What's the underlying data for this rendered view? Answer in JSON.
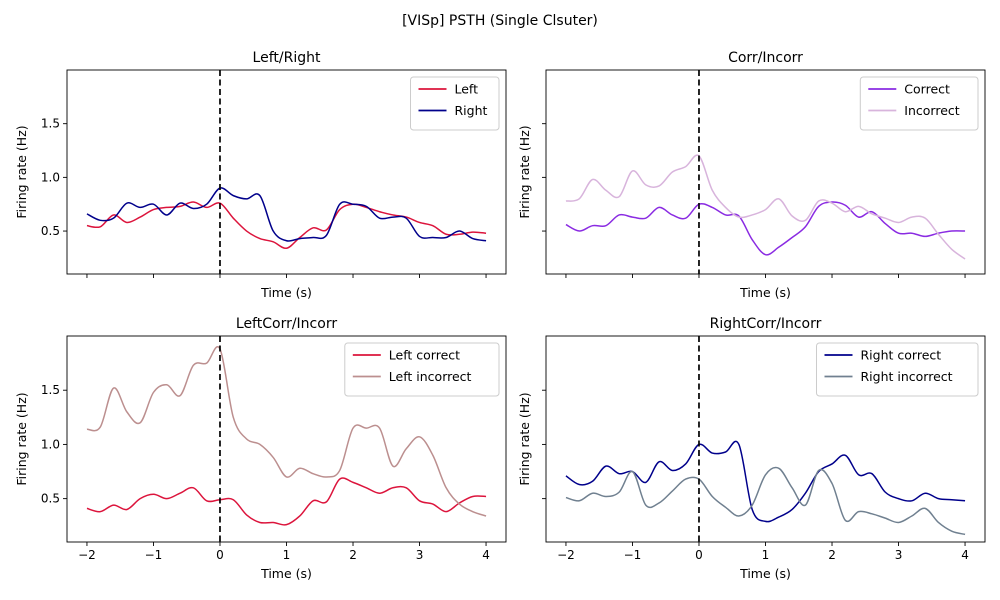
{
  "suptitle": "[VISp] PSTH (Single Clsuter)",
  "chart_data": [
    {
      "type": "line",
      "title": "Left/Right",
      "xlabel": "Time (s)",
      "ylabel": "Firing rate (Hz)",
      "xlim": [
        -2.3,
        4.3
      ],
      "ylim": [
        0.1,
        2.0
      ],
      "xticks": [
        -2,
        -1,
        0,
        1,
        2,
        3,
        4
      ],
      "yticks": [
        0.5,
        1.0,
        1.5
      ],
      "show_xticklabels": false,
      "show_yticklabels": true,
      "legend": "upper right",
      "vline": 0,
      "series": [
        {
          "name": "Left",
          "color": "#dc143c",
          "x": [
            -2.0,
            -1.8,
            -1.6,
            -1.4,
            -1.2,
            -1.0,
            -0.8,
            -0.6,
            -0.4,
            -0.2,
            0.0,
            0.2,
            0.4,
            0.6,
            0.8,
            1.0,
            1.2,
            1.4,
            1.6,
            1.8,
            2.0,
            2.2,
            2.4,
            2.6,
            2.8,
            3.0,
            3.2,
            3.4,
            3.6,
            3.8,
            4.0
          ],
          "y": [
            0.55,
            0.54,
            0.65,
            0.58,
            0.63,
            0.7,
            0.72,
            0.73,
            0.77,
            0.72,
            0.76,
            0.62,
            0.5,
            0.43,
            0.4,
            0.34,
            0.44,
            0.53,
            0.51,
            0.7,
            0.75,
            0.72,
            0.68,
            0.65,
            0.63,
            0.58,
            0.55,
            0.47,
            0.47,
            0.49,
            0.48
          ]
        },
        {
          "name": "Right",
          "color": "#00008b",
          "x": [
            -2.0,
            -1.8,
            -1.6,
            -1.4,
            -1.2,
            -1.0,
            -0.8,
            -0.6,
            -0.4,
            -0.2,
            0.0,
            0.2,
            0.4,
            0.6,
            0.8,
            1.0,
            1.2,
            1.4,
            1.6,
            1.8,
            2.0,
            2.2,
            2.4,
            2.6,
            2.8,
            3.0,
            3.2,
            3.4,
            3.6,
            3.8,
            4.0
          ],
          "y": [
            0.66,
            0.6,
            0.62,
            0.76,
            0.72,
            0.75,
            0.65,
            0.76,
            0.71,
            0.75,
            0.9,
            0.83,
            0.8,
            0.83,
            0.5,
            0.41,
            0.43,
            0.44,
            0.46,
            0.75,
            0.75,
            0.73,
            0.62,
            0.63,
            0.62,
            0.45,
            0.44,
            0.44,
            0.5,
            0.43,
            0.41
          ]
        }
      ]
    },
    {
      "type": "line",
      "title": "Corr/Incorr",
      "xlabel": "Time (s)",
      "ylabel": "Firing rate (Hz)",
      "xlim": [
        -2.3,
        4.3
      ],
      "ylim": [
        0.1,
        2.0
      ],
      "xticks": [
        -2,
        -1,
        0,
        1,
        2,
        3,
        4
      ],
      "yticks": [
        0.5,
        1.0,
        1.5
      ],
      "show_xticklabels": false,
      "show_yticklabels": false,
      "legend": "upper right",
      "vline": 0,
      "series": [
        {
          "name": "Correct",
          "color": "#8a2be2",
          "x": [
            -2.0,
            -1.8,
            -1.6,
            -1.4,
            -1.2,
            -1.0,
            -0.8,
            -0.6,
            -0.4,
            -0.2,
            0.0,
            0.2,
            0.4,
            0.6,
            0.8,
            1.0,
            1.2,
            1.4,
            1.6,
            1.8,
            2.0,
            2.2,
            2.4,
            2.6,
            2.8,
            3.0,
            3.2,
            3.4,
            3.6,
            3.8,
            4.0
          ],
          "y": [
            0.56,
            0.5,
            0.55,
            0.55,
            0.65,
            0.63,
            0.62,
            0.72,
            0.65,
            0.62,
            0.75,
            0.72,
            0.65,
            0.64,
            0.42,
            0.28,
            0.35,
            0.44,
            0.54,
            0.73,
            0.77,
            0.74,
            0.63,
            0.68,
            0.57,
            0.48,
            0.48,
            0.45,
            0.48,
            0.5,
            0.5
          ]
        },
        {
          "name": "Incorrect",
          "color": "#d8b4dc",
          "x": [
            -2.0,
            -1.8,
            -1.6,
            -1.4,
            -1.2,
            -1.0,
            -0.8,
            -0.6,
            -0.4,
            -0.2,
            0.0,
            0.2,
            0.4,
            0.6,
            0.8,
            1.0,
            1.2,
            1.4,
            1.6,
            1.8,
            2.0,
            2.2,
            2.4,
            2.6,
            2.8,
            3.0,
            3.2,
            3.4,
            3.6,
            3.8,
            4.0
          ],
          "y": [
            0.78,
            0.8,
            0.98,
            0.88,
            0.82,
            1.06,
            0.93,
            0.92,
            1.05,
            1.1,
            1.2,
            0.88,
            0.72,
            0.63,
            0.65,
            0.7,
            0.8,
            0.64,
            0.6,
            0.78,
            0.76,
            0.68,
            0.73,
            0.66,
            0.62,
            0.58,
            0.63,
            0.62,
            0.47,
            0.33,
            0.24
          ]
        }
      ]
    },
    {
      "type": "line",
      "title": "LeftCorr/Incorr",
      "xlabel": "Time (s)",
      "ylabel": "Firing rate (Hz)",
      "xlim": [
        -2.3,
        4.3
      ],
      "ylim": [
        0.1,
        2.0
      ],
      "xticks": [
        -2,
        -1,
        0,
        1,
        2,
        3,
        4
      ],
      "yticks": [
        0.5,
        1.0,
        1.5
      ],
      "show_xticklabels": true,
      "show_yticklabels": true,
      "legend": "upper right",
      "vline": 0,
      "series": [
        {
          "name": "Left correct",
          "color": "#dc143c",
          "x": [
            -2.0,
            -1.8,
            -1.6,
            -1.4,
            -1.2,
            -1.0,
            -0.8,
            -0.6,
            -0.4,
            -0.2,
            0.0,
            0.2,
            0.4,
            0.6,
            0.8,
            1.0,
            1.2,
            1.4,
            1.6,
            1.8,
            2.0,
            2.2,
            2.4,
            2.6,
            2.8,
            3.0,
            3.2,
            3.4,
            3.6,
            3.8,
            4.0
          ],
          "y": [
            0.41,
            0.38,
            0.44,
            0.4,
            0.5,
            0.54,
            0.5,
            0.55,
            0.6,
            0.48,
            0.49,
            0.49,
            0.35,
            0.28,
            0.28,
            0.26,
            0.34,
            0.48,
            0.47,
            0.68,
            0.65,
            0.6,
            0.55,
            0.6,
            0.6,
            0.48,
            0.45,
            0.38,
            0.46,
            0.52,
            0.52
          ]
        },
        {
          "name": "Left incorrect",
          "color": "#bc8f8f",
          "x": [
            -2.0,
            -1.8,
            -1.6,
            -1.4,
            -1.2,
            -1.0,
            -0.8,
            -0.6,
            -0.4,
            -0.2,
            0.0,
            0.2,
            0.4,
            0.6,
            0.8,
            1.0,
            1.2,
            1.4,
            1.6,
            1.8,
            2.0,
            2.2,
            2.4,
            2.6,
            2.8,
            3.0,
            3.2,
            3.4,
            3.6,
            3.8,
            4.0
          ],
          "y": [
            1.14,
            1.16,
            1.52,
            1.3,
            1.2,
            1.48,
            1.55,
            1.45,
            1.73,
            1.75,
            1.88,
            1.25,
            1.05,
            1.0,
            0.88,
            0.7,
            0.78,
            0.73,
            0.7,
            0.76,
            1.15,
            1.15,
            1.15,
            0.8,
            0.96,
            1.07,
            0.9,
            0.6,
            0.45,
            0.38,
            0.34
          ]
        }
      ]
    },
    {
      "type": "line",
      "title": "RightCorr/Incorr",
      "xlabel": "Time (s)",
      "ylabel": "Firing rate (Hz)",
      "xlim": [
        -2.3,
        4.3
      ],
      "ylim": [
        0.1,
        2.0
      ],
      "xticks": [
        -2,
        -1,
        0,
        1,
        2,
        3,
        4
      ],
      "yticks": [
        0.5,
        1.0,
        1.5
      ],
      "show_xticklabels": true,
      "show_yticklabels": false,
      "legend": "upper right",
      "vline": 0,
      "series": [
        {
          "name": "Right correct",
          "color": "#00008b",
          "x": [
            -2.0,
            -1.8,
            -1.6,
            -1.4,
            -1.2,
            -1.0,
            -0.8,
            -0.6,
            -0.4,
            -0.2,
            0.0,
            0.2,
            0.4,
            0.6,
            0.8,
            1.0,
            1.2,
            1.4,
            1.6,
            1.8,
            2.0,
            2.2,
            2.4,
            2.6,
            2.8,
            3.0,
            3.2,
            3.4,
            3.6,
            3.8,
            4.0
          ],
          "y": [
            0.71,
            0.63,
            0.66,
            0.8,
            0.73,
            0.75,
            0.65,
            0.84,
            0.76,
            0.82,
            1.0,
            0.92,
            0.93,
            1.0,
            0.4,
            0.29,
            0.33,
            0.4,
            0.55,
            0.75,
            0.82,
            0.9,
            0.72,
            0.73,
            0.56,
            0.5,
            0.48,
            0.55,
            0.5,
            0.49,
            0.48
          ]
        },
        {
          "name": "Right incorrect",
          "color": "#708090",
          "x": [
            -2.0,
            -1.8,
            -1.6,
            -1.4,
            -1.2,
            -1.0,
            -0.8,
            -0.6,
            -0.4,
            -0.2,
            0.0,
            0.2,
            0.4,
            0.6,
            0.8,
            1.0,
            1.2,
            1.4,
            1.6,
            1.8,
            2.0,
            2.2,
            2.4,
            2.6,
            2.8,
            3.0,
            3.2,
            3.4,
            3.6,
            3.8,
            4.0
          ],
          "y": [
            0.51,
            0.48,
            0.55,
            0.52,
            0.56,
            0.75,
            0.44,
            0.46,
            0.57,
            0.68,
            0.68,
            0.52,
            0.42,
            0.34,
            0.44,
            0.72,
            0.78,
            0.6,
            0.44,
            0.76,
            0.64,
            0.3,
            0.38,
            0.36,
            0.32,
            0.28,
            0.34,
            0.41,
            0.28,
            0.2,
            0.17
          ]
        }
      ]
    }
  ]
}
